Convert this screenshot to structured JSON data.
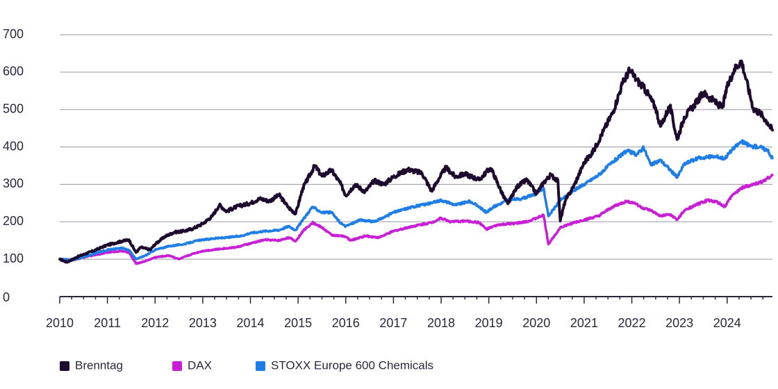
{
  "chart_data": {
    "type": "line",
    "title": "",
    "xlabel": "",
    "ylabel": "",
    "xlim": [
      2010,
      2024.95
    ],
    "ylim": [
      0,
      700
    ],
    "grid": true,
    "legend_position": "bottom-left",
    "y_ticks": [
      0,
      100,
      200,
      300,
      400,
      500,
      600,
      700
    ],
    "x_ticks": [
      2010,
      2011,
      2012,
      2013,
      2014,
      2015,
      2016,
      2017,
      2018,
      2019,
      2020,
      2021,
      2022,
      2023,
      2024
    ],
    "y_tick_labels": [
      "0",
      "100",
      "200",
      "300",
      "400",
      "500",
      "600",
      "700"
    ],
    "x_tick_labels": [
      "2010",
      "2011",
      "2012",
      "2013",
      "2014",
      "2015",
      "2016",
      "2017",
      "2018",
      "2019",
      "2020",
      "2021",
      "2022",
      "2023",
      "2024"
    ],
    "series": [
      {
        "name": "Brenntag",
        "color": "#1e0a2e",
        "points": [
          [
            2010.0,
            100
          ],
          [
            2010.15,
            92
          ],
          [
            2010.4,
            108
          ],
          [
            2010.7,
            122
          ],
          [
            2011.0,
            138
          ],
          [
            2011.3,
            148
          ],
          [
            2011.45,
            152
          ],
          [
            2011.6,
            118
          ],
          [
            2011.7,
            132
          ],
          [
            2011.9,
            125
          ],
          [
            2012.0,
            140
          ],
          [
            2012.2,
            160
          ],
          [
            2012.4,
            172
          ],
          [
            2012.6,
            175
          ],
          [
            2012.8,
            182
          ],
          [
            2013.0,
            195
          ],
          [
            2013.2,
            215
          ],
          [
            2013.35,
            245
          ],
          [
            2013.5,
            228
          ],
          [
            2013.7,
            240
          ],
          [
            2014.0,
            250
          ],
          [
            2014.2,
            262
          ],
          [
            2014.4,
            255
          ],
          [
            2014.6,
            272
          ],
          [
            2014.8,
            238
          ],
          [
            2014.95,
            222
          ],
          [
            2015.1,
            290
          ],
          [
            2015.35,
            350
          ],
          [
            2015.5,
            322
          ],
          [
            2015.7,
            338
          ],
          [
            2015.9,
            300
          ],
          [
            2016.0,
            270
          ],
          [
            2016.2,
            300
          ],
          [
            2016.4,
            280
          ],
          [
            2016.6,
            310
          ],
          [
            2016.8,
            300
          ],
          [
            2017.0,
            320
          ],
          [
            2017.3,
            340
          ],
          [
            2017.6,
            330
          ],
          [
            2017.8,
            282
          ],
          [
            2017.95,
            315
          ],
          [
            2018.1,
            345
          ],
          [
            2018.3,
            320
          ],
          [
            2018.5,
            328
          ],
          [
            2018.8,
            312
          ],
          [
            2019.0,
            340
          ],
          [
            2019.05,
            342
          ],
          [
            2019.3,
            270
          ],
          [
            2019.4,
            248
          ],
          [
            2019.6,
            295
          ],
          [
            2019.8,
            312
          ],
          [
            2020.0,
            275
          ],
          [
            2020.15,
            305
          ],
          [
            2020.3,
            325
          ],
          [
            2020.45,
            310
          ],
          [
            2020.5,
            202
          ],
          [
            2020.6,
            255
          ],
          [
            2020.8,
            300
          ],
          [
            2021.0,
            358
          ],
          [
            2021.2,
            390
          ],
          [
            2021.4,
            442
          ],
          [
            2021.6,
            492
          ],
          [
            2021.8,
            568
          ],
          [
            2021.95,
            605
          ],
          [
            2022.1,
            580
          ],
          [
            2022.3,
            550
          ],
          [
            2022.5,
            505
          ],
          [
            2022.6,
            455
          ],
          [
            2022.8,
            510
          ],
          [
            2022.95,
            420
          ],
          [
            2023.1,
            480
          ],
          [
            2023.3,
            510
          ],
          [
            2023.5,
            545
          ],
          [
            2023.7,
            525
          ],
          [
            2023.9,
            505
          ],
          [
            2024.0,
            560
          ],
          [
            2024.15,
            608
          ],
          [
            2024.3,
            630
          ],
          [
            2024.4,
            580
          ],
          [
            2024.55,
            502
          ],
          [
            2024.7,
            490
          ],
          [
            2024.85,
            465
          ],
          [
            2024.95,
            445
          ]
        ]
      },
      {
        "name": "DAX",
        "color": "#c81fd6",
        "points": [
          [
            2010.0,
            100
          ],
          [
            2010.3,
            98
          ],
          [
            2010.6,
            108
          ],
          [
            2011.0,
            118
          ],
          [
            2011.3,
            122
          ],
          [
            2011.45,
            118
          ],
          [
            2011.6,
            88
          ],
          [
            2011.8,
            95
          ],
          [
            2012.0,
            105
          ],
          [
            2012.3,
            110
          ],
          [
            2012.5,
            100
          ],
          [
            2012.8,
            115
          ],
          [
            2013.0,
            122
          ],
          [
            2013.4,
            128
          ],
          [
            2013.7,
            132
          ],
          [
            2014.0,
            142
          ],
          [
            2014.3,
            152
          ],
          [
            2014.6,
            150
          ],
          [
            2014.8,
            158
          ],
          [
            2014.95,
            148
          ],
          [
            2015.1,
            175
          ],
          [
            2015.3,
            198
          ],
          [
            2015.5,
            185
          ],
          [
            2015.7,
            165
          ],
          [
            2016.0,
            160
          ],
          [
            2016.1,
            150
          ],
          [
            2016.4,
            162
          ],
          [
            2016.7,
            158
          ],
          [
            2017.0,
            175
          ],
          [
            2017.4,
            188
          ],
          [
            2017.8,
            198
          ],
          [
            2018.0,
            210
          ],
          [
            2018.2,
            200
          ],
          [
            2018.5,
            202
          ],
          [
            2018.8,
            198
          ],
          [
            2018.95,
            180
          ],
          [
            2019.2,
            192
          ],
          [
            2019.5,
            195
          ],
          [
            2019.8,
            200
          ],
          [
            2020.0,
            210
          ],
          [
            2020.15,
            218
          ],
          [
            2020.25,
            140
          ],
          [
            2020.5,
            185
          ],
          [
            2020.8,
            198
          ],
          [
            2021.0,
            205
          ],
          [
            2021.3,
            215
          ],
          [
            2021.6,
            240
          ],
          [
            2021.9,
            255
          ],
          [
            2022.1,
            248
          ],
          [
            2022.2,
            238
          ],
          [
            2022.4,
            230
          ],
          [
            2022.6,
            215
          ],
          [
            2022.8,
            220
          ],
          [
            2022.95,
            205
          ],
          [
            2023.1,
            230
          ],
          [
            2023.4,
            248
          ],
          [
            2023.6,
            258
          ],
          [
            2023.8,
            252
          ],
          [
            2023.95,
            240
          ],
          [
            2024.1,
            270
          ],
          [
            2024.3,
            290
          ],
          [
            2024.5,
            298
          ],
          [
            2024.7,
            305
          ],
          [
            2024.95,
            325
          ]
        ]
      },
      {
        "name": "STOXX Europe 600 Chemicals",
        "color": "#1e7ee6",
        "points": [
          [
            2010.0,
            100
          ],
          [
            2010.3,
            98
          ],
          [
            2010.6,
            110
          ],
          [
            2011.0,
            125
          ],
          [
            2011.3,
            130
          ],
          [
            2011.45,
            125
          ],
          [
            2011.6,
            100
          ],
          [
            2011.8,
            110
          ],
          [
            2012.0,
            125
          ],
          [
            2012.3,
            135
          ],
          [
            2012.6,
            140
          ],
          [
            2012.9,
            150
          ],
          [
            2013.2,
            155
          ],
          [
            2013.5,
            158
          ],
          [
            2013.8,
            162
          ],
          [
            2014.0,
            170
          ],
          [
            2014.3,
            175
          ],
          [
            2014.6,
            178
          ],
          [
            2014.8,
            188
          ],
          [
            2014.95,
            178
          ],
          [
            2015.1,
            205
          ],
          [
            2015.3,
            240
          ],
          [
            2015.5,
            225
          ],
          [
            2015.7,
            225
          ],
          [
            2015.9,
            195
          ],
          [
            2016.0,
            188
          ],
          [
            2016.3,
            205
          ],
          [
            2016.6,
            200
          ],
          [
            2016.8,
            212
          ],
          [
            2017.0,
            225
          ],
          [
            2017.4,
            240
          ],
          [
            2017.8,
            250
          ],
          [
            2018.0,
            258
          ],
          [
            2018.3,
            245
          ],
          [
            2018.6,
            255
          ],
          [
            2018.8,
            240
          ],
          [
            2018.95,
            225
          ],
          [
            2019.1,
            240
          ],
          [
            2019.4,
            258
          ],
          [
            2019.7,
            262
          ],
          [
            2020.0,
            275
          ],
          [
            2020.15,
            290
          ],
          [
            2020.25,
            215
          ],
          [
            2020.5,
            258
          ],
          [
            2020.8,
            285
          ],
          [
            2021.0,
            300
          ],
          [
            2021.3,
            325
          ],
          [
            2021.6,
            360
          ],
          [
            2021.9,
            390
          ],
          [
            2022.1,
            380
          ],
          [
            2022.25,
            398
          ],
          [
            2022.4,
            352
          ],
          [
            2022.6,
            365
          ],
          [
            2022.8,
            340
          ],
          [
            2022.95,
            318
          ],
          [
            2023.1,
            355
          ],
          [
            2023.4,
            370
          ],
          [
            2023.7,
            375
          ],
          [
            2023.95,
            370
          ],
          [
            2024.1,
            392
          ],
          [
            2024.3,
            415
          ],
          [
            2024.5,
            402
          ],
          [
            2024.7,
            400
          ],
          [
            2024.85,
            390
          ],
          [
            2024.95,
            370
          ]
        ]
      }
    ]
  }
}
